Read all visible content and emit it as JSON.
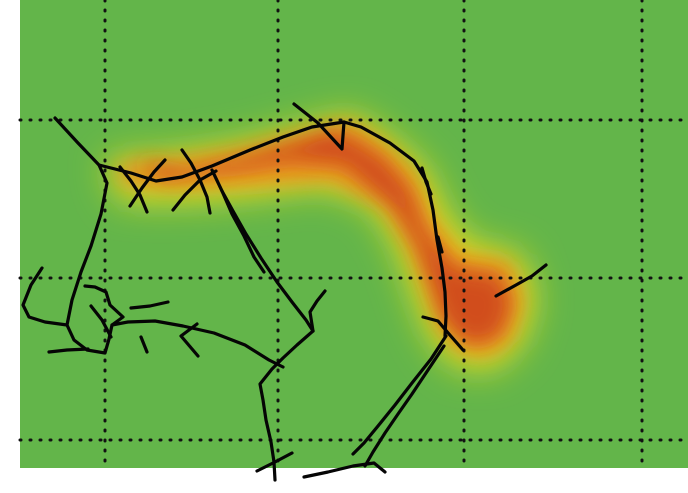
{
  "map": {
    "background_color": "#63b54a",
    "heat_colors": {
      "low": "#63b54a",
      "mid": "#f2e21f",
      "high": "#e9891c",
      "peak": "#c8321b"
    },
    "grid_color": "#111111",
    "track_color": "#050505",
    "icon": "heatmap-tracks"
  }
}
